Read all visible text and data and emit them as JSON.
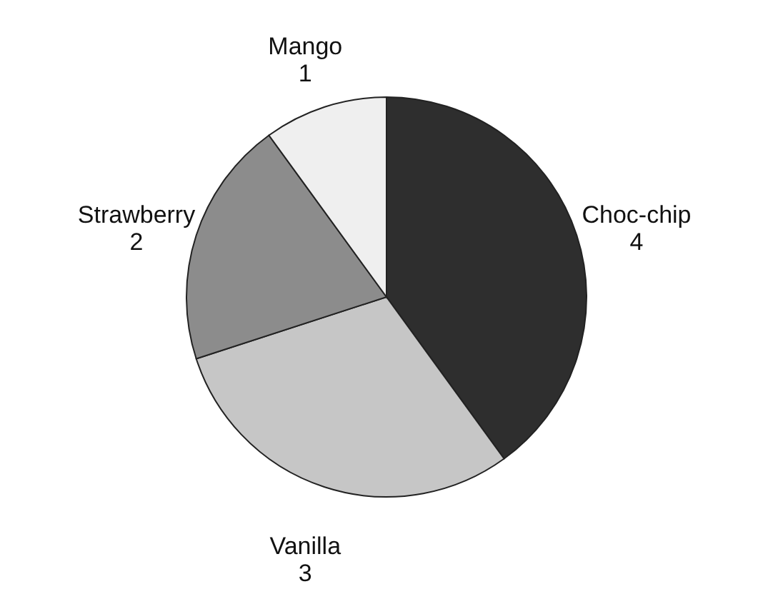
{
  "chart_data": {
    "type": "pie",
    "categories": [
      "Choc-chip",
      "Vanilla",
      "Strawberry",
      "Mango"
    ],
    "values": [
      4,
      3,
      2,
      1
    ],
    "colors": [
      "#2e2e2e",
      "#c6c6c6",
      "#8c8c8c",
      "#efefef"
    ],
    "data_labels": true
  }
}
